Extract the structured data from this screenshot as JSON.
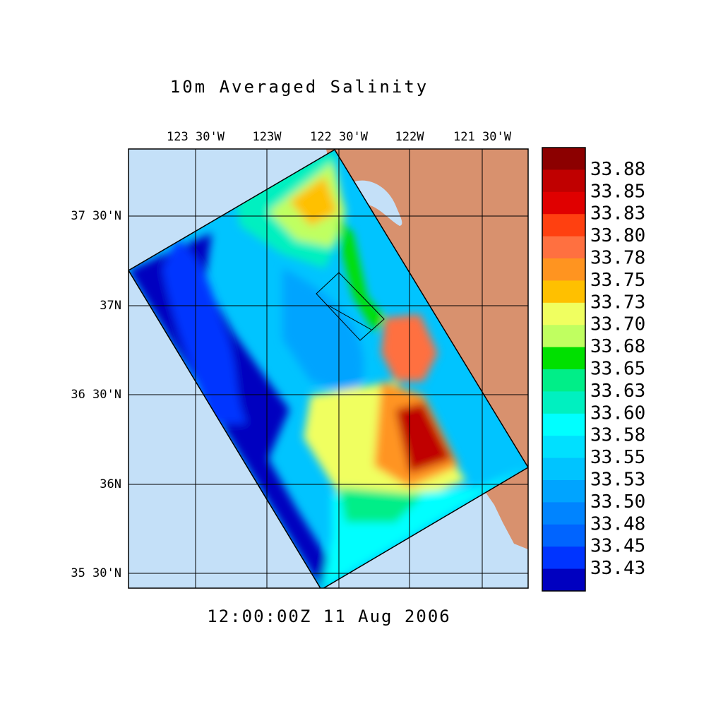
{
  "title": "10m Averaged Salinity",
  "lon_labels": [
    "123 30'W",
    "123W",
    "122 30'W",
    "122W",
    "121 30'W"
  ],
  "lat_labels": [
    "37 30'N",
    "37N",
    "36 30'N",
    "36N",
    "35 30'N"
  ],
  "colorbar": {
    "labels": [
      "33.88",
      "33.85",
      "33.83",
      "33.80",
      "33.78",
      "33.75",
      "33.73",
      "33.70",
      "33.68",
      "33.65",
      "33.63",
      "33.60",
      "33.58",
      "33.55",
      "33.53",
      "33.50",
      "33.48",
      "33.45",
      "33.43"
    ],
    "colors": [
      "#8c0000",
      "#c00000",
      "#e00000",
      "#ff4010",
      "#ff7040",
      "#ff9420",
      "#ffc000",
      "#f0ff60",
      "#c0ff60",
      "#00e000",
      "#00ee88",
      "#00f0c0",
      "#00ffff",
      "#00e0ff",
      "#00c4ff",
      "#00a4ff",
      "#0084ff",
      "#0064ff",
      "#0034ff",
      "#0000c0"
    ]
  },
  "timestamp": "12:00:00Z  11 Aug 2006"
}
